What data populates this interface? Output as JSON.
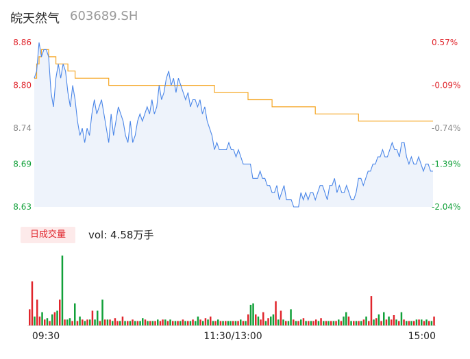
{
  "header": {
    "name": "皖天然气",
    "code": "603689.SH"
  },
  "colors": {
    "price_line": "#4a86e8",
    "avg_line": "#f5a623",
    "up": "#e0252c",
    "down": "#11a039",
    "flat": "#888888"
  },
  "volume_panel": {
    "badge": "日成交量",
    "summary": "vol: 4.58万手"
  },
  "chart_data": {
    "type": "line",
    "title": "",
    "x_ticks": [
      "09:30",
      "11:30/13:00",
      "15:00"
    ],
    "price_ticks": [
      8.86,
      8.8,
      8.74,
      8.69,
      8.63
    ],
    "price_tick_labels": [
      "8.86",
      "8.80",
      "8.74",
      "8.69",
      "8.63"
    ],
    "pct_tick_labels": [
      "0.57%",
      "-0.09%",
      "-0.74%",
      "-1.39%",
      "-2.04%"
    ],
    "ylim": [
      8.63,
      8.86
    ],
    "series": [
      {
        "key": "price",
        "values": [
          8.81,
          8.82,
          8.86,
          8.84,
          8.85,
          8.85,
          8.84,
          8.79,
          8.77,
          8.81,
          8.83,
          8.81,
          8.83,
          8.82,
          8.79,
          8.77,
          8.8,
          8.78,
          8.75,
          8.73,
          8.74,
          8.72,
          8.74,
          8.73,
          8.76,
          8.78,
          8.76,
          8.77,
          8.78,
          8.76,
          8.74,
          8.72,
          8.76,
          8.73,
          8.75,
          8.77,
          8.76,
          8.75,
          8.73,
          8.72,
          8.75,
          8.72,
          8.73,
          8.75,
          8.76,
          8.75,
          8.76,
          8.77,
          8.76,
          8.78,
          8.76,
          8.77,
          8.8,
          8.78,
          8.79,
          8.81,
          8.82,
          8.8,
          8.81,
          8.79,
          8.81,
          8.8,
          8.79,
          8.78,
          8.79,
          8.77,
          8.78,
          8.78,
          8.77,
          8.78,
          8.76,
          8.77,
          8.75,
          8.74,
          8.73,
          8.71,
          8.72,
          8.71,
          8.71,
          8.71,
          8.71,
          8.72,
          8.71,
          8.71,
          8.7,
          8.71,
          8.7,
          8.69,
          8.69,
          8.69,
          8.69,
          8.67,
          8.67,
          8.67,
          8.68,
          8.67,
          8.67,
          8.66,
          8.66,
          8.65,
          8.65,
          8.66,
          8.64,
          8.65,
          8.66,
          8.64,
          8.64,
          8.64,
          8.63,
          8.63,
          8.63,
          8.65,
          8.64,
          8.65,
          8.64,
          8.65,
          8.65,
          8.64,
          8.65,
          8.66,
          8.66,
          8.65,
          8.64,
          8.66,
          8.66,
          8.67,
          8.65,
          8.66,
          8.65,
          8.65,
          8.66,
          8.65,
          8.64,
          8.64,
          8.65,
          8.67,
          8.67,
          8.66,
          8.67,
          8.68,
          8.68,
          8.69,
          8.69,
          8.7,
          8.7,
          8.71,
          8.7,
          8.7,
          8.71,
          8.72,
          8.71,
          8.71,
          8.7,
          8.72,
          8.72,
          8.7,
          8.69,
          8.7,
          8.69,
          8.69,
          8.7,
          8.69,
          8.68,
          8.69,
          8.69,
          8.68,
          8.68
        ],
        "color": "#4a86e8"
      },
      {
        "key": "average",
        "values": [
          8.81,
          8.83,
          8.84,
          8.85,
          8.85,
          8.85,
          8.84,
          8.84,
          8.84,
          8.83,
          8.83,
          8.83,
          8.83,
          8.83,
          8.82,
          8.82,
          8.82,
          8.81,
          8.81,
          8.81,
          8.81,
          8.81,
          8.81,
          8.81,
          8.81,
          8.81,
          8.81,
          8.81,
          8.81,
          8.81,
          8.81,
          8.8,
          8.8,
          8.8,
          8.8,
          8.8,
          8.8,
          8.8,
          8.8,
          8.8,
          8.8,
          8.8,
          8.8,
          8.8,
          8.8,
          8.8,
          8.8,
          8.8,
          8.8,
          8.8,
          8.8,
          8.8,
          8.8,
          8.8,
          8.8,
          8.8,
          8.8,
          8.8,
          8.8,
          8.8,
          8.8,
          8.8,
          8.8,
          8.8,
          8.8,
          8.8,
          8.8,
          8.8,
          8.8,
          8.8,
          8.8,
          8.8,
          8.8,
          8.8,
          8.8,
          8.79,
          8.79,
          8.79,
          8.79,
          8.79,
          8.79,
          8.79,
          8.79,
          8.79,
          8.79,
          8.79,
          8.79,
          8.79,
          8.79,
          8.78,
          8.78,
          8.78,
          8.78,
          8.78,
          8.78,
          8.78,
          8.78,
          8.78,
          8.78,
          8.77,
          8.77,
          8.77,
          8.77,
          8.77,
          8.77,
          8.77,
          8.77,
          8.77,
          8.77,
          8.77,
          8.77,
          8.77,
          8.77,
          8.77,
          8.77,
          8.77,
          8.77,
          8.76,
          8.76,
          8.76,
          8.76,
          8.76,
          8.76,
          8.76,
          8.76,
          8.76,
          8.76,
          8.76,
          8.76,
          8.76,
          8.76,
          8.76,
          8.76,
          8.76,
          8.76,
          8.75,
          8.75,
          8.75,
          8.75,
          8.75,
          8.75,
          8.75,
          8.75,
          8.75,
          8.75,
          8.75,
          8.75,
          8.75,
          8.75,
          8.75,
          8.75,
          8.75,
          8.75,
          8.75,
          8.75,
          8.75,
          8.75,
          8.75,
          8.75,
          8.75,
          8.75,
          8.75,
          8.75,
          8.75,
          8.75,
          8.75,
          8.75
        ],
        "color": "#f5a623"
      }
    ],
    "volume": {
      "values": [
        22,
        60,
        12,
        35,
        12,
        18,
        8,
        10,
        6,
        15,
        18,
        20,
        35,
        95,
        8,
        8,
        10,
        6,
        30,
        6,
        12,
        8,
        6,
        8,
        8,
        20,
        8,
        20,
        6,
        35,
        8,
        8,
        8,
        6,
        10,
        6,
        6,
        12,
        6,
        6,
        6,
        8,
        6,
        6,
        6,
        10,
        8,
        6,
        6,
        6,
        6,
        8,
        6,
        8,
        8,
        6,
        8,
        6,
        6,
        6,
        6,
        8,
        6,
        6,
        6,
        8,
        6,
        12,
        8,
        6,
        10,
        8,
        12,
        6,
        6,
        8,
        6,
        6,
        6,
        6,
        6,
        6,
        6,
        6,
        8,
        6,
        6,
        15,
        28,
        30,
        15,
        12,
        8,
        18,
        6,
        10,
        12,
        15,
        33,
        8,
        20,
        8,
        6,
        6,
        22,
        8,
        6,
        6,
        8,
        10,
        6,
        6,
        6,
        6,
        8,
        6,
        10,
        6,
        6,
        6,
        6,
        6,
        6,
        8,
        6,
        12,
        18,
        12,
        6,
        6,
        6,
        6,
        6,
        8,
        12,
        6,
        40,
        8,
        10,
        15,
        6,
        18,
        8,
        12,
        8,
        14,
        8,
        6,
        18,
        8,
        6,
        6,
        6,
        6,
        8,
        8,
        8,
        6,
        8,
        6,
        6,
        12
      ],
      "up": [
        true,
        true,
        false,
        true,
        true,
        false,
        true,
        false,
        true,
        false,
        true,
        false,
        true,
        false,
        true,
        false,
        false,
        true,
        false,
        true,
        false,
        true,
        false,
        true,
        false,
        true,
        false,
        false,
        true,
        false,
        true,
        false,
        true,
        false,
        true,
        true,
        false,
        true,
        false,
        true,
        false,
        true,
        false,
        true,
        false,
        false,
        true,
        false,
        true,
        false,
        true,
        false,
        true,
        true,
        false,
        true,
        false,
        true,
        false,
        true,
        false,
        true,
        false,
        true,
        false,
        true,
        false,
        false,
        true,
        false,
        true,
        false,
        true,
        false,
        true,
        false,
        true,
        false,
        true,
        false,
        false,
        true,
        false,
        true,
        false,
        true,
        false,
        true,
        false,
        false,
        true,
        false,
        true,
        true,
        false,
        true,
        false,
        false,
        true,
        false,
        true,
        false,
        true,
        false,
        false,
        true,
        false,
        true,
        false,
        true,
        false,
        true,
        false,
        true,
        true,
        false,
        true,
        false,
        true,
        false,
        true,
        false,
        true,
        false,
        true,
        false,
        false,
        true,
        false,
        true,
        false,
        true,
        false,
        true,
        false,
        true,
        true,
        false,
        true,
        false,
        true,
        false,
        true,
        false,
        true,
        true,
        false,
        true,
        false,
        true,
        false,
        true,
        false,
        true,
        false,
        true,
        false,
        true,
        false,
        true,
        false,
        true
      ]
    }
  }
}
